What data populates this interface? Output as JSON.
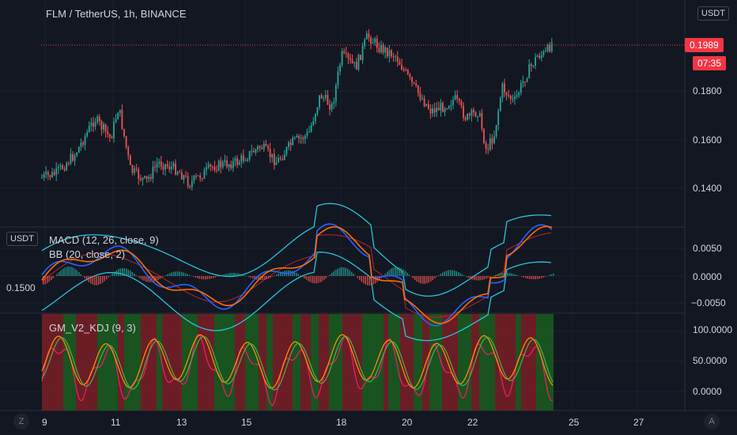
{
  "symbol_title": "FLM / TetherUS, 1h, BINANCE",
  "currency_label": "USDT",
  "left_currency_label": "USDT",
  "price_tag": "0.1989",
  "countdown_tag": "07:35",
  "price_axis": [
    "0.1800",
    "0.1600",
    "0.1400"
  ],
  "left_value": "0.1500",
  "macd_title": "MACD (12, 26, close, 9)",
  "bb_title": "BB (20, close, 2)",
  "macd_axis": [
    "0.0050",
    "0.0000",
    "−0.0050"
  ],
  "kdj_title": "GM_V2_KDJ (9, 3)",
  "kdj_axis": [
    "100.0000",
    "50.0000",
    "0.0000"
  ],
  "x_ticks": [
    "9",
    "11",
    "13",
    "15",
    "18",
    "20",
    "22",
    "25",
    "27"
  ],
  "bottom_left_button": "Z",
  "bottom_right_button": "A",
  "colors": {
    "up": "#26a69a",
    "down": "#ef5350",
    "macd": "#2962ff",
    "signal": "#ff6d00",
    "bb": "#26c6da",
    "k": "#ff9800",
    "d": "#4caf50",
    "j": "#e91e63"
  }
}
